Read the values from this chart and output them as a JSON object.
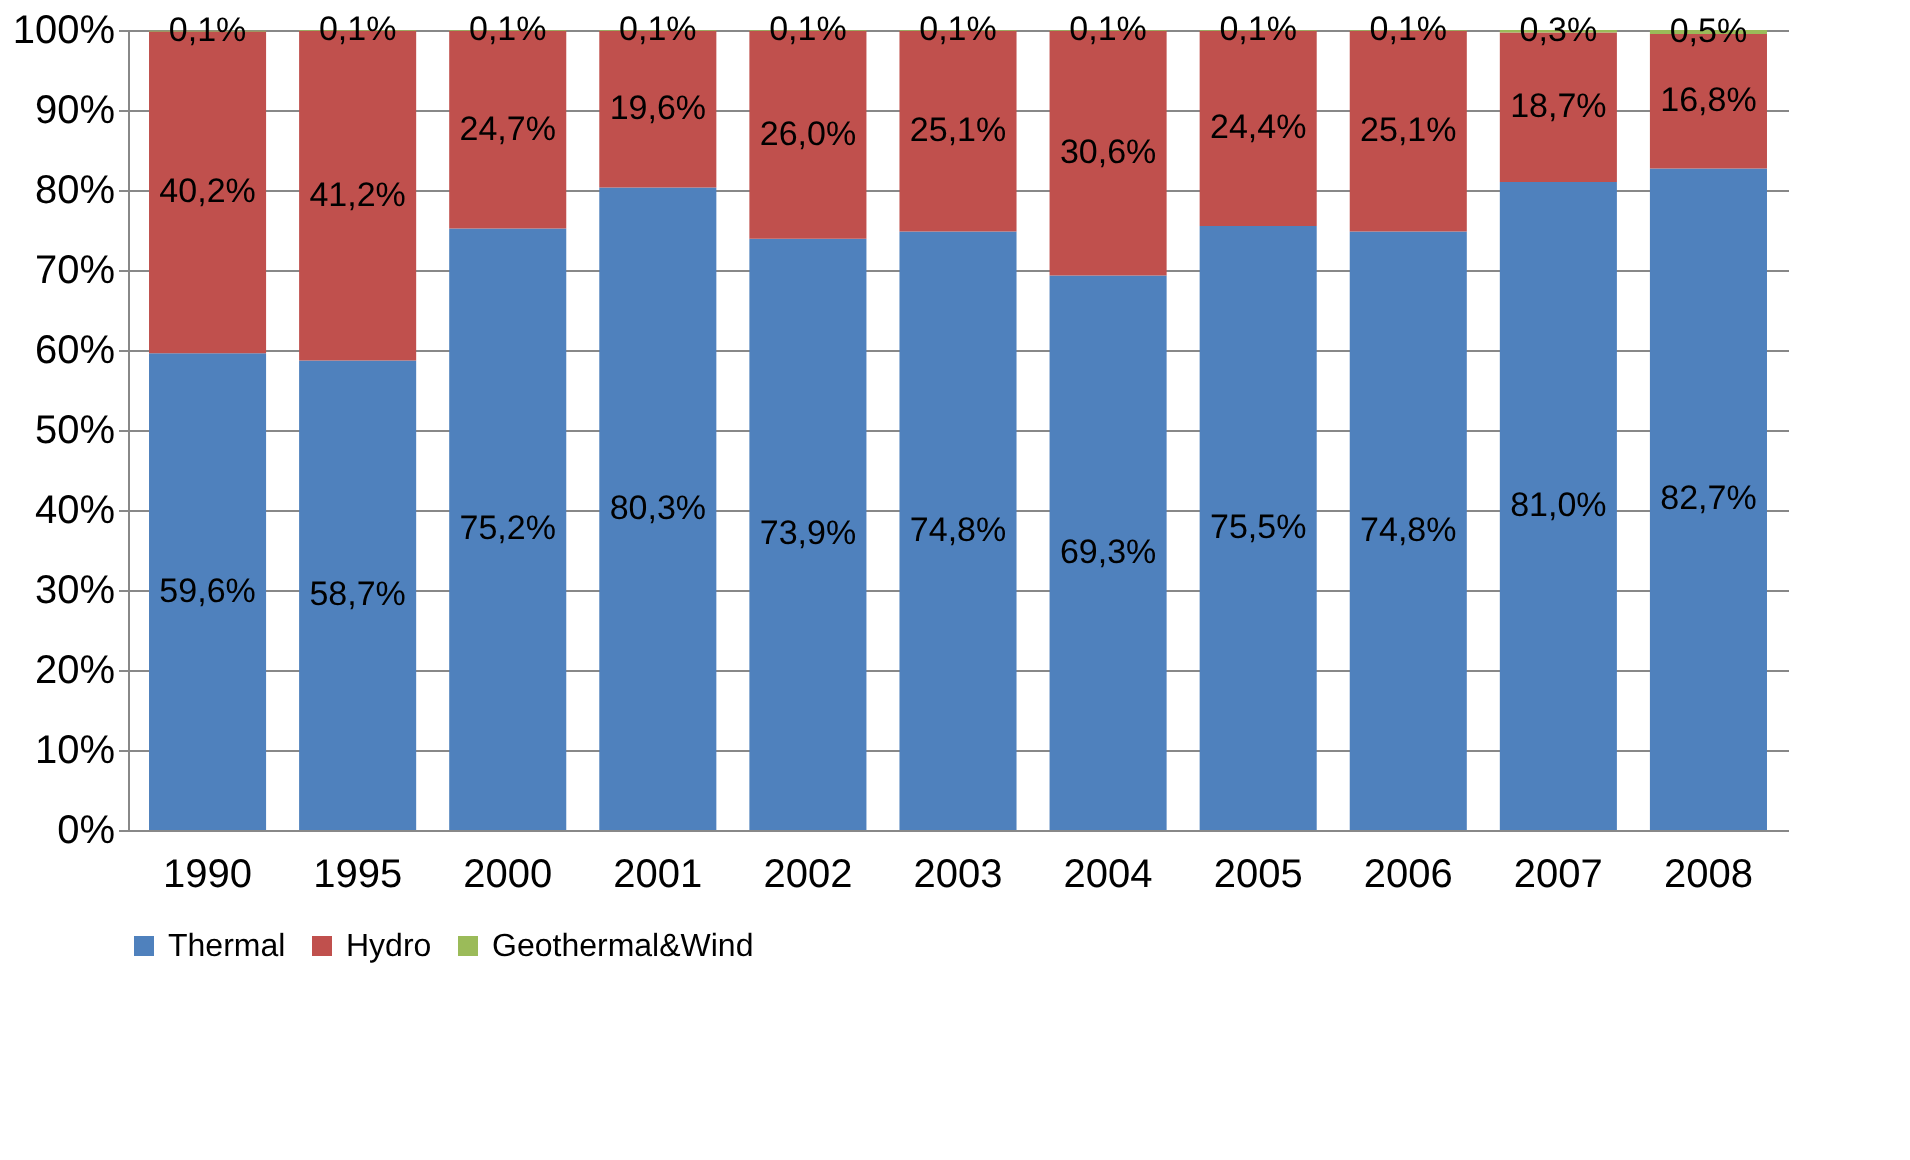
{
  "chart_data": {
    "type": "bar",
    "stacked": true,
    "categories": [
      "1990",
      "1995",
      "2000",
      "2001",
      "2002",
      "2003",
      "2004",
      "2005",
      "2006",
      "2007",
      "2008"
    ],
    "series": [
      {
        "name": "Thermal",
        "color": "#4f81bd",
        "values": [
          59.6,
          58.7,
          75.2,
          80.3,
          73.9,
          74.8,
          69.3,
          75.5,
          74.8,
          81.0,
          82.7
        ],
        "value_labels": [
          "59,6%",
          "58,7%",
          "75,2%",
          "80,3%",
          "73,9%",
          "74,8%",
          "69,3%",
          "75,5%",
          "74,8%",
          "81,0%",
          "82,7%"
        ]
      },
      {
        "name": "Hydro",
        "color": "#c0504d",
        "values": [
          40.2,
          41.2,
          24.7,
          19.6,
          26.0,
          25.1,
          30.6,
          24.4,
          25.1,
          18.7,
          16.8
        ],
        "value_labels": [
          "40,2%",
          "41,2%",
          "24,7%",
          "19,6%",
          "26,0%",
          "25,1%",
          "30,6%",
          "24,4%",
          "25,1%",
          "18,7%",
          "16,8%"
        ]
      },
      {
        "name": "Geothermal&Wind",
        "color": "#9bbb59",
        "values": [
          0.1,
          0.1,
          0.1,
          0.1,
          0.1,
          0.1,
          0.1,
          0.1,
          0.1,
          0.3,
          0.5
        ],
        "value_labels": [
          "0,1%",
          "0,1%",
          "0,1%",
          "0,1%",
          "0,1%",
          "0,1%",
          "0,1%",
          "0,1%",
          "0,1%",
          "0,3%",
          "0,5%"
        ]
      }
    ],
    "ylim": [
      0,
      100
    ],
    "yticks": [
      {
        "value": 0,
        "label": "0%"
      },
      {
        "value": 10,
        "label": "10%"
      },
      {
        "value": 20,
        "label": "20%"
      },
      {
        "value": 30,
        "label": "30%"
      },
      {
        "value": 40,
        "label": "40%"
      },
      {
        "value": 50,
        "label": "50%"
      },
      {
        "value": 60,
        "label": "60%"
      },
      {
        "value": 70,
        "label": "70%"
      },
      {
        "value": 80,
        "label": "80%"
      },
      {
        "value": 90,
        "label": "90%"
      },
      {
        "value": 100,
        "label": "100%"
      }
    ],
    "grid": "y",
    "legend": "bottom"
  }
}
